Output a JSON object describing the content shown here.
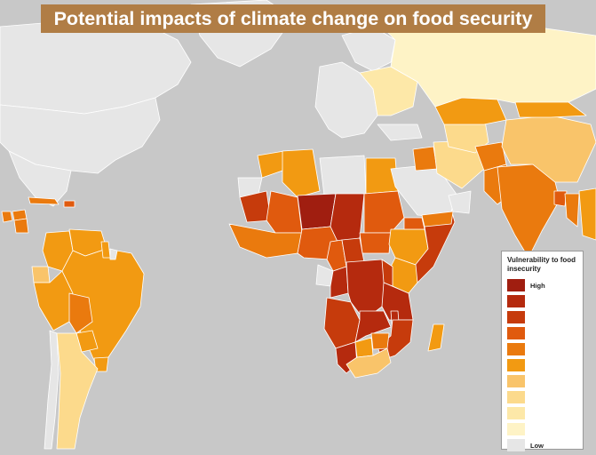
{
  "title": "Potential impacts of climate change on food security",
  "colors": {
    "ocean": "#c8c8c8",
    "no_data": "#e6e6e6",
    "border": "#ffffff",
    "banner": "#b07d45"
  },
  "legend": {
    "title": "Vulnerability to food insecurity",
    "high_label": "High",
    "low_label": "Low",
    "levels": [
      "#a01e10",
      "#b52a0e",
      "#c63b0c",
      "#e05a0e",
      "#ea7a0e",
      "#f29a12",
      "#f9c46a",
      "#fcda8c",
      "#fde8a8",
      "#fef3c6",
      "#e6e6e6"
    ]
  },
  "map_data": {
    "scale": "vulnerability to food insecurity, level 1 (high) to 10 (low); 11 = no data",
    "regions": [
      {
        "name": "Canada",
        "level": 11
      },
      {
        "name": "United States",
        "level": 11
      },
      {
        "name": "Greenland",
        "level": 11
      },
      {
        "name": "Mexico",
        "level": 11
      },
      {
        "name": "Guatemala",
        "level": 5
      },
      {
        "name": "Honduras",
        "level": 5
      },
      {
        "name": "Nicaragua",
        "level": 5
      },
      {
        "name": "Cuba",
        "level": 5
      },
      {
        "name": "Haiti",
        "level": 4
      },
      {
        "name": "Colombia",
        "level": 6
      },
      {
        "name": "Venezuela",
        "level": 6
      },
      {
        "name": "Ecuador",
        "level": 7
      },
      {
        "name": "Peru",
        "level": 6
      },
      {
        "name": "Brazil",
        "level": 6
      },
      {
        "name": "Bolivia",
        "level": 5
      },
      {
        "name": "Paraguay",
        "level": 6
      },
      {
        "name": "Uruguay",
        "level": 6
      },
      {
        "name": "Chile",
        "level": 11
      },
      {
        "name": "Argentina",
        "level": 8
      },
      {
        "name": "Guyana",
        "level": 6
      },
      {
        "name": "Suriname",
        "level": 11
      },
      {
        "name": "Western Europe",
        "level": 11
      },
      {
        "name": "Scandinavia",
        "level": 11
      },
      {
        "name": "Eastern Europe",
        "level": 9
      },
      {
        "name": "Russia",
        "level": 10
      },
      {
        "name": "Turkey",
        "level": 11
      },
      {
        "name": "Morocco",
        "level": 6
      },
      {
        "name": "Algeria",
        "level": 6
      },
      {
        "name": "Libya",
        "level": 11
      },
      {
        "name": "Egypt",
        "level": 6
      },
      {
        "name": "Western Sahara",
        "level": 11
      },
      {
        "name": "Mauritania",
        "level": 3
      },
      {
        "name": "Mali",
        "level": 4
      },
      {
        "name": "Niger",
        "level": 1
      },
      {
        "name": "Chad",
        "level": 2
      },
      {
        "name": "Sudan",
        "level": 4
      },
      {
        "name": "South Sudan",
        "level": 4
      },
      {
        "name": "Ethiopia",
        "level": 6
      },
      {
        "name": "Eritrea",
        "level": 4
      },
      {
        "name": "Somalia",
        "level": 3
      },
      {
        "name": "Kenya",
        "level": 6
      },
      {
        "name": "West Africa coast",
        "level": 5
      },
      {
        "name": "Nigeria",
        "level": 4
      },
      {
        "name": "Cameroon",
        "level": 4
      },
      {
        "name": "Central African Republic",
        "level": 3
      },
      {
        "name": "Gabon",
        "level": 11
      },
      {
        "name": "Congo",
        "level": 2
      },
      {
        "name": "DR Congo",
        "level": 2
      },
      {
        "name": "Uganda",
        "level": 3
      },
      {
        "name": "Tanzania",
        "level": 2
      },
      {
        "name": "Angola",
        "level": 3
      },
      {
        "name": "Zambia",
        "level": 2
      },
      {
        "name": "Malawi",
        "level": 2
      },
      {
        "name": "Mozambique",
        "level": 3
      },
      {
        "name": "Namibia",
        "level": 2
      },
      {
        "name": "Botswana",
        "level": 6
      },
      {
        "name": "Zimbabwe",
        "level": 5
      },
      {
        "name": "South Africa",
        "level": 7
      },
      {
        "name": "Madagascar",
        "level": 6
      },
      {
        "name": "Saudi Arabia",
        "level": 11
      },
      {
        "name": "Yemen",
        "level": 5
      },
      {
        "name": "Oman",
        "level": 11
      },
      {
        "name": "Iraq",
        "level": 5
      },
      {
        "name": "Iran",
        "level": 8
      },
      {
        "name": "Central Asia",
        "level": 8
      },
      {
        "name": "Kazakhstan",
        "level": 6
      },
      {
        "name": "Afghanistan",
        "level": 5
      },
      {
        "name": "Pakistan",
        "level": 5
      },
      {
        "name": "India",
        "level": 5
      },
      {
        "name": "China",
        "level": 7
      },
      {
        "name": "Mongolia",
        "level": 6
      },
      {
        "name": "Bangladesh",
        "level": 4
      },
      {
        "name": "Myanmar",
        "level": 5
      },
      {
        "name": "Southeast Asia",
        "level": 6
      }
    ]
  }
}
